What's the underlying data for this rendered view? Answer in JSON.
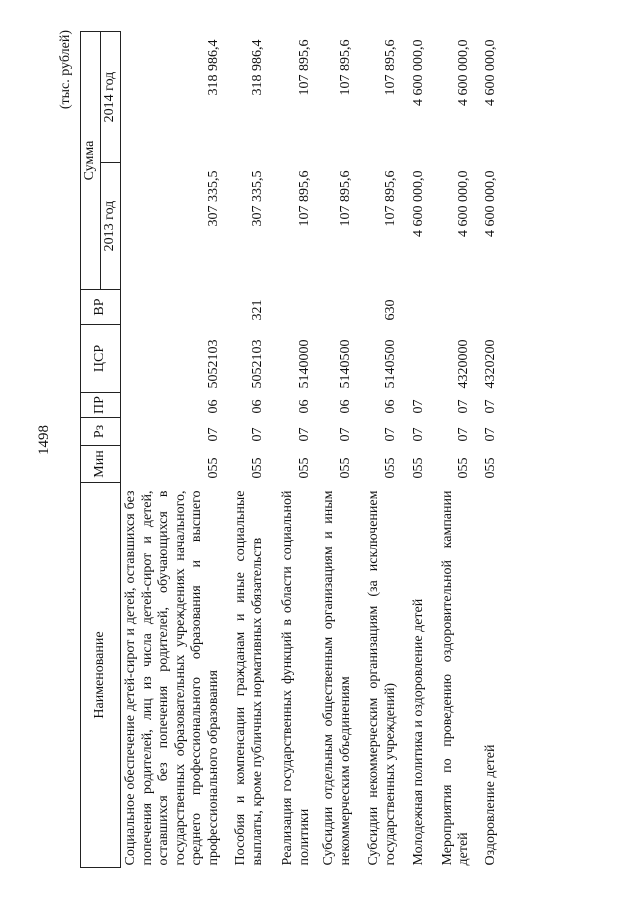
{
  "page_number": "1498",
  "units": "(тыс. рублей)",
  "headers": {
    "name": "Наименование",
    "min": "Мин",
    "rz": "Рз",
    "pr": "ПР",
    "csr": "ЦСР",
    "vr": "ВР",
    "sum": "Сумма",
    "y2013": "2013 год",
    "y2014": "2014 год"
  },
  "rows": [
    {
      "name": "Социальное обеспечение детей-сирот и детей, оставшихся без попечения родителей, лиц из числа детей-сирот и детей, оставшихся без попечения родителей, обучающихся в государственных образовательных учреждениях начального, среднего профессионального образования и высшего профессионального образования",
      "min": "055",
      "rz": "07",
      "pr": "06",
      "csr": "5052103",
      "vr": "",
      "y2013": "307 335,5",
      "y2014": "318 986,4"
    },
    {
      "name": "Пособия и компенсации гражданам и иные социальные выплаты, кроме публичных нормативных обязательств",
      "min": "055",
      "rz": "07",
      "pr": "06",
      "csr": "5052103",
      "vr": "321",
      "y2013": "307 335,5",
      "y2014": "318 986,4"
    },
    {
      "name": "Реализация государственных функций в области социальной политики",
      "min": "055",
      "rz": "07",
      "pr": "06",
      "csr": "5140000",
      "vr": "",
      "y2013": "107 895,6",
      "y2014": "107 895,6"
    },
    {
      "name": "Субсидии отдельным общественным организациям и иным некоммерческим объединениям",
      "min": "055",
      "rz": "07",
      "pr": "06",
      "csr": "5140500",
      "vr": "",
      "y2013": "107 895,6",
      "y2014": "107 895,6"
    },
    {
      "name": "Субсидии некоммерческим организациям (за исключением государственных учреждений)",
      "min": "055",
      "rz": "07",
      "pr": "06",
      "csr": "5140500",
      "vr": "630",
      "y2013": "107 895,6",
      "y2014": "107 895,6"
    },
    {
      "name": "Молодежная политика и оздоровление детей",
      "min": "055",
      "rz": "07",
      "pr": "07",
      "csr": "",
      "vr": "",
      "y2013": "4 600 000,0",
      "y2014": "4 600 000,0"
    },
    {
      "name": "Мероприятия по проведению оздоровительной кампании детей",
      "min": "055",
      "rz": "07",
      "pr": "07",
      "csr": "4320000",
      "vr": "",
      "y2013": "4 600 000,0",
      "y2014": "4 600 000,0"
    },
    {
      "name": "Оздоровление детей",
      "min": "055",
      "rz": "07",
      "pr": "07",
      "csr": "4320200",
      "vr": "",
      "y2013": "4 600 000,0",
      "y2014": "4 600 000,0"
    }
  ]
}
